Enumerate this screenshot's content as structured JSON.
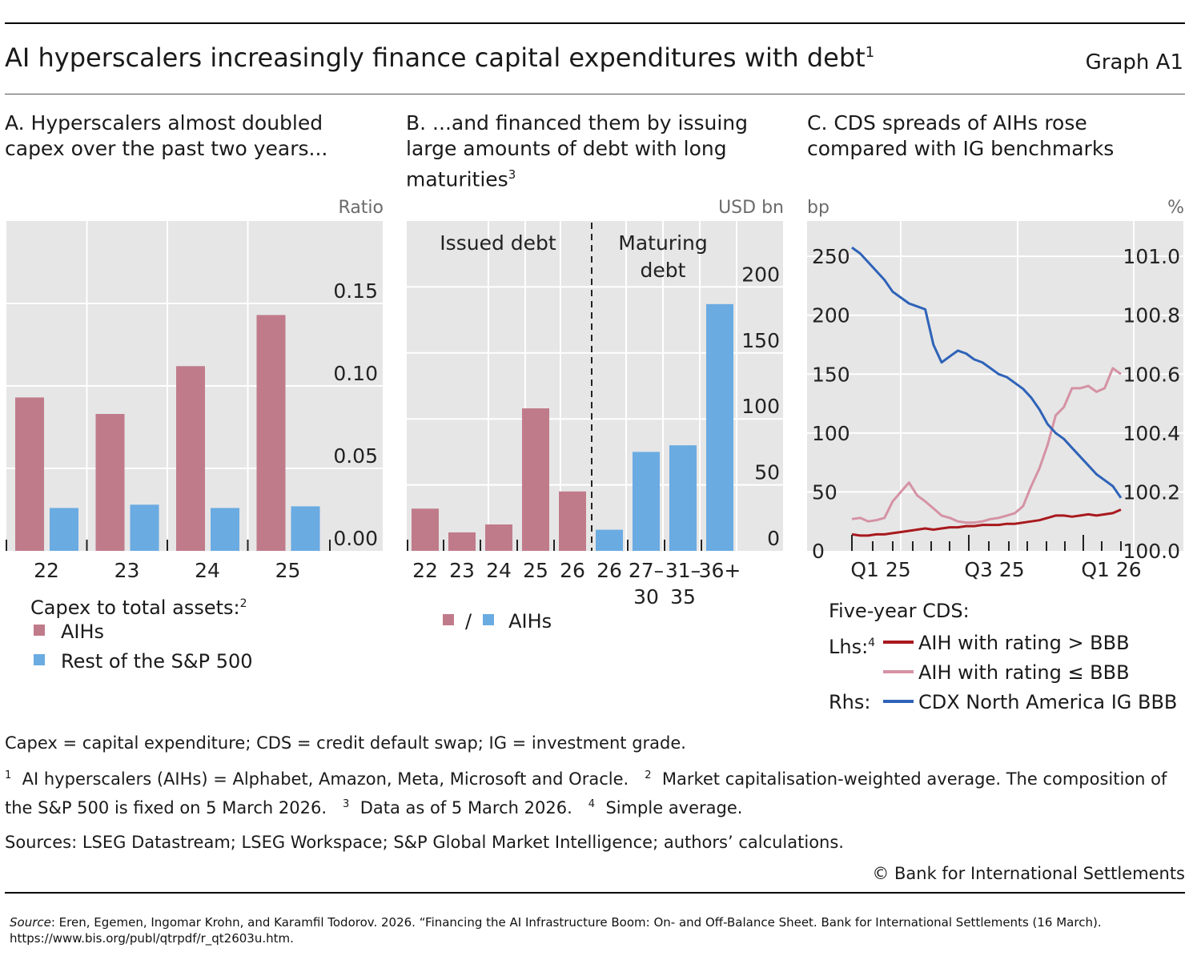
{
  "header": {
    "title": "AI hyperscalers increasingly finance capital expenditures with debt",
    "title_sup": "1",
    "graph_no": "Graph A1"
  },
  "panels": {
    "a": {
      "title": "A. Hyperscalers almost doubled capex over the past two years...",
      "unit": "Ratio",
      "legend_title": "Capex to total assets:",
      "legend_title_sup": "2",
      "legend": [
        "AIHs",
        "Rest of the S&P 500"
      ]
    },
    "b": {
      "title": "B. ...and financed them by issuing large amounts of debt with long maturities",
      "title_sup": "3",
      "unit": "USD bn",
      "section_left": "Issued debt",
      "section_right_1": "Maturing",
      "section_right_2": "debt",
      "legend_sep": "/",
      "legend_label": "AIHs"
    },
    "c": {
      "title": "C. CDS spreads of AIHs rose compared with IG benchmarks",
      "unit_left": "bp",
      "unit_right": "%",
      "legend_title": "Five-year CDS:",
      "lhs_label": "Lhs:",
      "lhs_sup": "4",
      "rhs_label": "Rhs:",
      "legend": [
        "AIH with rating > BBB",
        "AIH with rating ≤ BBB",
        "CDX North America IG BBB"
      ]
    }
  },
  "colors": {
    "pink": "#c07b8b",
    "blue": "#6aabe2",
    "dark_red": "#a8191e",
    "light_pink": "#d592a4",
    "line_blue": "#2f63b8",
    "plot_bg": "#e6e6e6",
    "grid": "#ffffff"
  },
  "chart_data": [
    {
      "type": "bar",
      "title": "A. Hyperscalers almost doubled capex over the past two years...",
      "ylabel": "Ratio",
      "categories": [
        "22",
        "23",
        "24",
        "25"
      ],
      "series": [
        {
          "name": "AIHs",
          "values": [
            0.093,
            0.083,
            0.112,
            0.143
          ]
        },
        {
          "name": "Rest of the S&P 500",
          "values": [
            0.026,
            0.028,
            0.026,
            0.027
          ]
        }
      ],
      "ylim": [
        0,
        0.2
      ],
      "yticks": [
        0.0,
        0.05,
        0.1,
        0.15
      ],
      "ytick_labels": [
        "0.00",
        "0.05",
        "0.10",
        "0.15"
      ],
      "grid": true
    },
    {
      "type": "bar",
      "title": "B. ...and financed them by issuing large amounts of debt with long maturities",
      "ylabel": "USD bn",
      "categories": [
        "22",
        "23",
        "24",
        "25",
        "26",
        "26",
        "27–30",
        "31–35",
        "36+"
      ],
      "groups": [
        "Issued debt",
        "Issued debt",
        "Issued debt",
        "Issued debt",
        "Issued debt",
        "Maturing debt",
        "Maturing debt",
        "Maturing debt",
        "Maturing debt"
      ],
      "series": [
        {
          "name": "AIHs",
          "values": [
            32,
            14,
            20,
            108,
            45,
            16,
            75,
            80,
            187
          ]
        }
      ],
      "ylim": [
        0,
        250
      ],
      "yticks": [
        0,
        50,
        100,
        150,
        200
      ],
      "grid": true
    },
    {
      "type": "line",
      "title": "C. CDS spreads of AIHs rose compared with IG benchmarks",
      "x_tick_labels": [
        "Q1 25",
        "Q3 25",
        "Q1 26"
      ],
      "x_start": "2024-12",
      "x_end": "2026-03",
      "ylabel_left": "bp",
      "ylabel_right": "%",
      "ylim_left": [
        0,
        280
      ],
      "yticks_left": [
        0,
        50,
        100,
        150,
        200,
        250
      ],
      "ylim_right": [
        100.0,
        101.12
      ],
      "yticks_right": [
        "100.0",
        "100.2",
        "100.4",
        "100.6",
        "100.8",
        "101.0"
      ],
      "series": [
        {
          "name": "AIH with rating > BBB",
          "axis": "left",
          "values": [
            14,
            13,
            13,
            14,
            14,
            15,
            16,
            17,
            18,
            19,
            18,
            19,
            20,
            20,
            21,
            21,
            22,
            22,
            22,
            23,
            23,
            24,
            25,
            26,
            28,
            30,
            30,
            29,
            30,
            31,
            30,
            31,
            32,
            35
          ]
        },
        {
          "name": "AIH with rating ≤ BBB",
          "axis": "left",
          "values": [
            27,
            28,
            25,
            26,
            28,
            42,
            50,
            58,
            47,
            42,
            36,
            30,
            28,
            25,
            24,
            24,
            25,
            27,
            28,
            30,
            32,
            38,
            55,
            70,
            90,
            115,
            122,
            138,
            138,
            140,
            135,
            138,
            155,
            150
          ]
        },
        {
          "name": "CDX North America IG BBB",
          "axis": "right",
          "values": [
            101.03,
            101.01,
            100.98,
            100.95,
            100.92,
            100.88,
            100.86,
            100.84,
            100.83,
            100.82,
            100.7,
            100.64,
            100.66,
            100.68,
            100.67,
            100.65,
            100.64,
            100.62,
            100.6,
            100.59,
            100.57,
            100.55,
            100.52,
            100.48,
            100.43,
            100.4,
            100.38,
            100.35,
            100.32,
            100.29,
            100.26,
            100.24,
            100.22,
            100.18
          ]
        }
      ],
      "grid": true
    }
  ],
  "notes": {
    "abbrev": "Capex = capital expenditure; CDS = credit default swap; IG = investment grade.",
    "fn1_num": "1",
    "fn1": "AI hyperscalers (AIHs) = Alphabet, Amazon, Meta, Microsoft and Oracle.",
    "fn2_num": "2",
    "fn2": "Market capitalisation-weighted average. The composition of the S&P 500 is fixed on 5 March 2026.",
    "fn3_num": "3",
    "fn3": "Data as of 5 March 2026.",
    "fn4_num": "4",
    "fn4": "Simple average.",
    "sources": "Sources: LSEG Datastream; LSEG Workspace; S&P Global Market Intelligence; authors’ calculations.",
    "copyright": "© Bank for International Settlements",
    "source_label": "Source",
    "source_text": ": Eren, Egemen, Ingomar Krohn, and Karamfil Todorov. 2026. “Financing the AI Infrastructure Boom: On- and Off-Balance Sheet. Bank for International Settlements (16 March). https://www.bis.org/publ/qtrpdf/r_qt2603u.htm."
  }
}
